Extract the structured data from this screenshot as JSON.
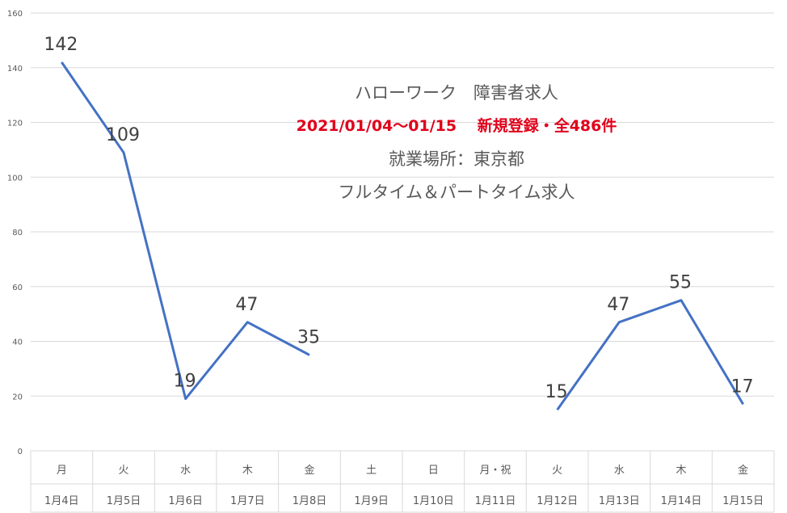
{
  "chart_data": {
    "type": "line",
    "title_lines": [
      "ハローワーク　障害者求人",
      "2021/01/04〜01/15　 新規登録・全486件",
      "就業場所：東京都",
      "フルタイム＆パートタイム求人"
    ],
    "weekdays": [
      "月",
      "火",
      "水",
      "木",
      "金",
      "土",
      "日",
      "月・祝",
      "火",
      "水",
      "木",
      "金"
    ],
    "categories": [
      "1月4日",
      "1月5日",
      "1月6日",
      "1月7日",
      "1月8日",
      "1月9日",
      "1月10日",
      "1月11日",
      "1月12日",
      "1月13日",
      "1月14日",
      "1月15日"
    ],
    "series": [
      {
        "values": [
          142,
          109,
          19,
          47,
          35,
          null,
          null,
          null,
          15,
          47,
          55,
          17
        ]
      }
    ],
    "data_labels": [
      "142",
      "109",
      "19",
      "47",
      "35",
      "",
      "",
      "",
      "15",
      "47",
      "55",
      "17"
    ],
    "y_ticks": [
      "0",
      "20",
      "40",
      "60",
      "80",
      "100",
      "120",
      "140",
      "160"
    ],
    "ylim": [
      0,
      160
    ],
    "grid": true,
    "legend": "none",
    "colors": {
      "line": "#4472c4",
      "grid": "#d9d9d9",
      "axis_text": "#595959",
      "title_red": "#e0001a"
    }
  }
}
